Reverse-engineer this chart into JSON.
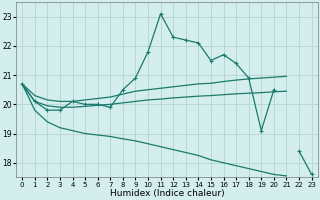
{
  "xlabel": "Humidex (Indice chaleur)",
  "bg_color": "#d4eeee",
  "grid_color": "#b8d8d8",
  "line_color": "#1a7a6a",
  "x_data": [
    0,
    1,
    2,
    3,
    4,
    5,
    6,
    7,
    8,
    9,
    10,
    11,
    12,
    13,
    14,
    15,
    16,
    17,
    18,
    19,
    20,
    21,
    22,
    23
  ],
  "y_main": [
    20.7,
    20.1,
    19.8,
    19.8,
    20.1,
    20.0,
    20.0,
    19.9,
    20.5,
    20.9,
    21.8,
    23.1,
    22.3,
    22.2,
    22.1,
    21.5,
    21.7,
    21.4,
    20.9,
    19.1,
    20.5,
    null,
    18.4,
    17.6
  ],
  "y_line1": [
    20.7,
    20.3,
    20.15,
    20.1,
    20.1,
    20.15,
    20.2,
    20.25,
    20.35,
    20.45,
    20.5,
    20.55,
    20.6,
    20.65,
    20.7,
    20.72,
    20.78,
    20.83,
    20.87,
    20.9,
    20.93,
    20.96,
    null,
    null
  ],
  "y_line2": [
    20.7,
    20.1,
    19.95,
    19.9,
    19.9,
    19.93,
    19.97,
    20.0,
    20.05,
    20.1,
    20.15,
    20.18,
    20.22,
    20.25,
    20.28,
    20.3,
    20.33,
    20.36,
    20.38,
    20.4,
    20.43,
    20.45,
    null,
    null
  ],
  "y_line3": [
    20.7,
    19.8,
    19.4,
    19.2,
    19.1,
    19.0,
    18.95,
    18.9,
    18.82,
    18.75,
    18.65,
    18.55,
    18.45,
    18.35,
    18.25,
    18.1,
    18.0,
    17.9,
    17.8,
    17.7,
    17.6,
    17.55,
    null,
    null
  ],
  "ylim": [
    17.5,
    23.5
  ],
  "xlim": [
    -0.5,
    23.5
  ],
  "yticks": [
    18,
    19,
    20,
    21,
    22,
    23
  ],
  "xticks": [
    0,
    1,
    2,
    3,
    4,
    5,
    6,
    7,
    8,
    9,
    10,
    11,
    12,
    13,
    14,
    15,
    16,
    17,
    18,
    19,
    20,
    21,
    22,
    23
  ]
}
